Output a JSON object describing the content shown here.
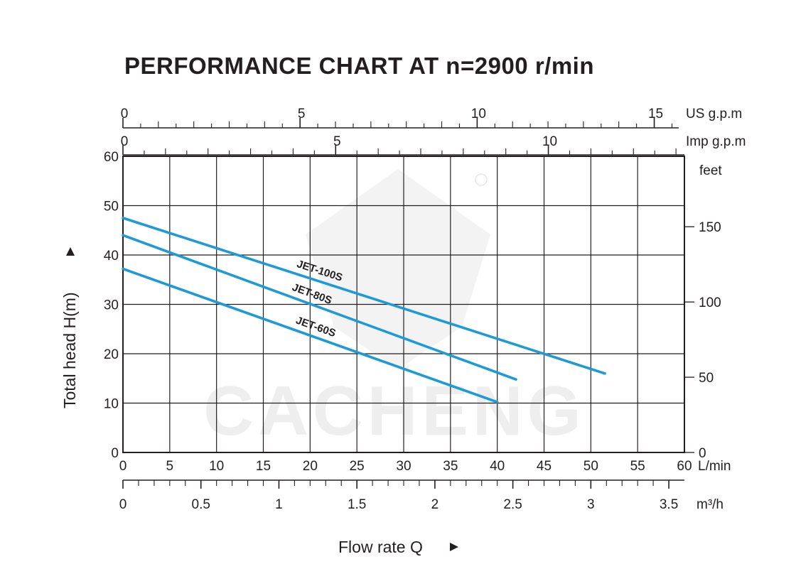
{
  "chart_data": {
    "type": "line",
    "title": "PERFORMANCE CHART AT n=2900 r/min",
    "ylabel": "Total  head H(m)",
    "xlabel": "Flow rate  Q",
    "ylim": [
      0,
      60
    ],
    "xlim": [
      0,
      60
    ],
    "grid": true,
    "x_unit": "L/min",
    "y_ticks": [
      "0",
      "10",
      "20",
      "30",
      "40",
      "50",
      "60"
    ],
    "x_ticks": [
      "0",
      "5",
      "10",
      "15",
      "20",
      "25",
      "30",
      "35",
      "40",
      "45",
      "50",
      "55",
      "60"
    ],
    "m3h_unit": "m³/h",
    "m3h_ticks": [
      "0",
      "0.5",
      "1",
      "1.5",
      "2",
      "2.5",
      "3",
      "3.5"
    ],
    "us_gpm_unit": "US g.p.m",
    "us_gpm_ticks": [
      "0",
      "5",
      "10",
      "15"
    ],
    "imp_gpm_unit": "Imp g.p.m",
    "imp_gpm_ticks": [
      "0",
      "5",
      "10"
    ],
    "feet_unit": "feet",
    "feet_ticks": [
      "0",
      "50",
      "100",
      "150"
    ],
    "series": [
      {
        "name": "JET-100S",
        "color": "#1e9ad6",
        "x": [
          0,
          51.5
        ],
        "y": [
          47.5,
          16.0
        ]
      },
      {
        "name": "JET-80S",
        "color": "#1e9ad6",
        "x": [
          0,
          42
        ],
        "y": [
          44.0,
          14.8
        ]
      },
      {
        "name": "JET-60S",
        "color": "#1e9ad6",
        "x": [
          0,
          40
        ],
        "y": [
          37.2,
          10.2
        ]
      }
    ],
    "watermark": "CACHENG"
  }
}
